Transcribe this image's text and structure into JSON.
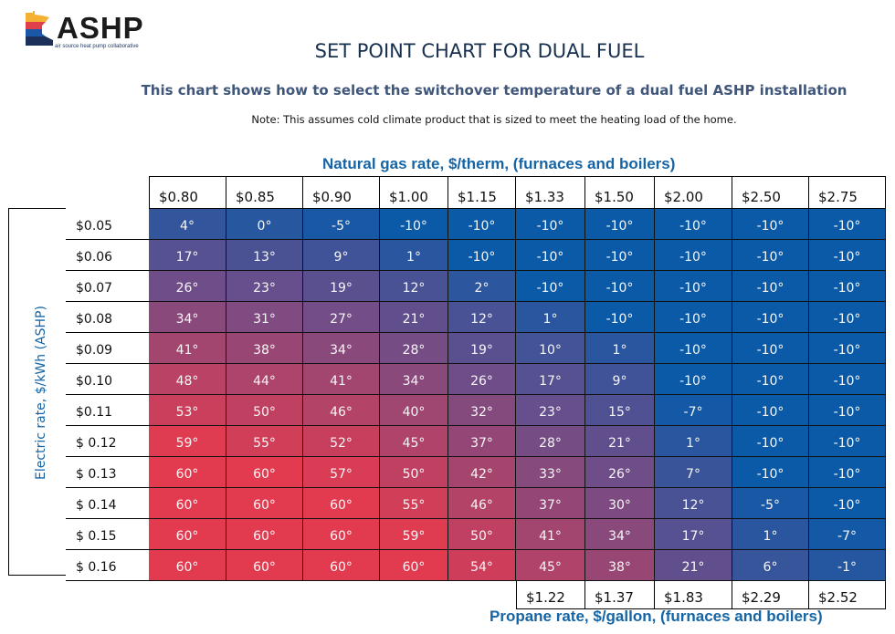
{
  "logo": {
    "text": "ASHP",
    "subtext": "air source heat pump collaborative",
    "colors": [
      "#f3b234",
      "#e0404a",
      "#1a57a6",
      "#1c2f5a"
    ]
  },
  "header": {
    "title": "SET POINT CHART FOR DUAL FUEL",
    "subtitle": "This chart shows how to select the switchover temperature of a dual fuel ASHP installation",
    "note": "Note: This assumes cold climate product that is sized to meet the heating load of the home."
  },
  "axes": {
    "gas_label": "Natural gas rate, $/therm, (furnaces and boilers)",
    "propane_label": "Propane rate, $/gallon, (furnaces and boilers)",
    "electric_label": "Electric rate, $/kWh (ASHP)"
  },
  "colors": {
    "cold": "#0b5aa8",
    "hot": "#e23b50",
    "label_blue": "#1565a6",
    "title_navy": "#17304f"
  },
  "chart_data": {
    "type": "heatmap",
    "title": "SET POINT CHART FOR DUAL FUEL",
    "subtitle": "This chart shows how to select the switchover temperature of a dual fuel ASHP installation",
    "xlabel": "Natural gas rate, $/therm, (furnaces and boilers)",
    "x2label": "Propane rate, $/gallon, (furnaces and boilers)",
    "ylabel": "Electric rate, $/kWh (ASHP)",
    "units": "°F switchover temperature",
    "value_range": [
      -10,
      60
    ],
    "columns": [
      "$0.80",
      "$0.85",
      "$0.90",
      "$1.00",
      "$1.15",
      "$1.33",
      "$1.50",
      "$2.00",
      "$2.50",
      "$2.75"
    ],
    "propane_columns": [
      "",
      "",
      "",
      "",
      "",
      "$1.22",
      "$1.37",
      "$1.83",
      "$2.29",
      "$2.52"
    ],
    "rows": [
      "$0.05",
      "$0.06",
      "$0.07",
      "$0.08",
      "$0.09",
      "$0.10",
      "$0.11",
      "$ 0.12",
      "$ 0.13",
      "$ 0.14",
      "$ 0.15",
      "$ 0.16"
    ],
    "values": [
      [
        4,
        0,
        -5,
        -10,
        -10,
        -10,
        -10,
        -10,
        -10,
        -10
      ],
      [
        17,
        13,
        9,
        1,
        -10,
        -10,
        -10,
        -10,
        -10,
        -10
      ],
      [
        26,
        23,
        19,
        12,
        2,
        -10,
        -10,
        -10,
        -10,
        -10
      ],
      [
        34,
        31,
        27,
        21,
        12,
        1,
        -10,
        -10,
        -10,
        -10
      ],
      [
        41,
        38,
        34,
        28,
        19,
        10,
        1,
        -10,
        -10,
        -10
      ],
      [
        48,
        44,
        41,
        34,
        26,
        17,
        9,
        -10,
        -10,
        -10
      ],
      [
        53,
        50,
        46,
        40,
        32,
        23,
        15,
        -7,
        -10,
        -10
      ],
      [
        59,
        55,
        52,
        45,
        37,
        28,
        21,
        1,
        -10,
        -10
      ],
      [
        60,
        60,
        57,
        50,
        42,
        33,
        26,
        7,
        -10,
        -10
      ],
      [
        60,
        60,
        60,
        55,
        46,
        37,
        30,
        12,
        -5,
        -10
      ],
      [
        60,
        60,
        60,
        59,
        50,
        41,
        34,
        17,
        1,
        -7
      ],
      [
        60,
        60,
        60,
        60,
        54,
        45,
        38,
        21,
        6,
        -1
      ]
    ]
  }
}
